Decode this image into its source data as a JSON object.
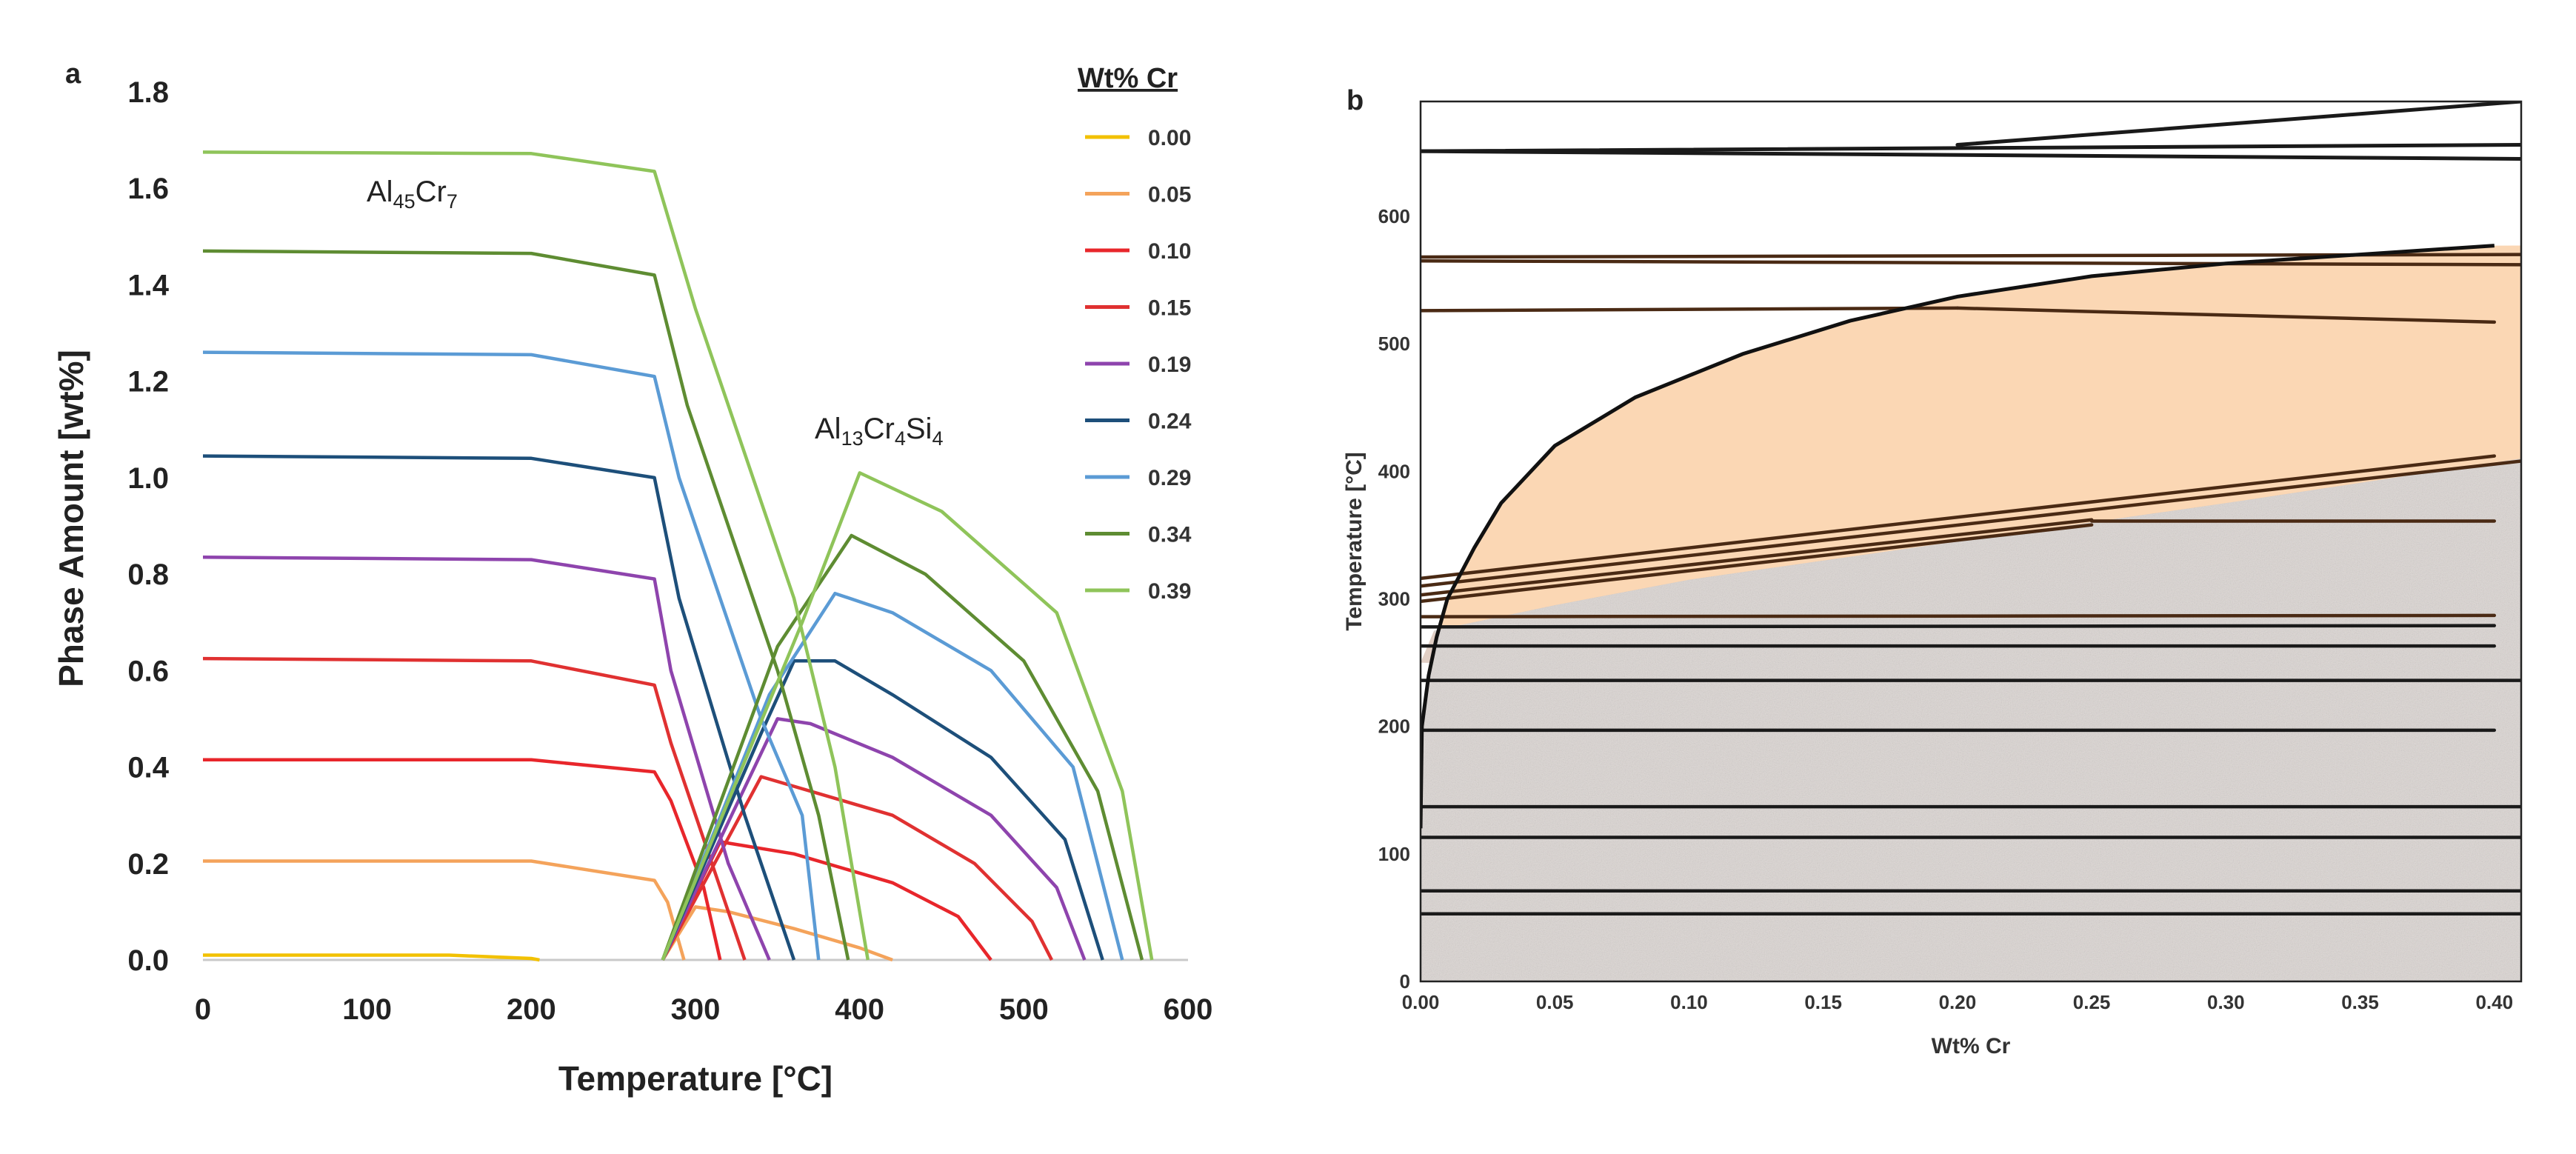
{
  "chart_data": [
    {
      "type": "line",
      "panel_label": "a",
      "xlabel": "Temperature [°C]",
      "ylabel": "Phase Amount [wt%]",
      "xlim": [
        0,
        600
      ],
      "ylim": [
        0,
        1.8
      ],
      "x_ticks": [
        "0",
        "100",
        "200",
        "300",
        "400",
        "500",
        "600"
      ],
      "y_ticks": [
        "0.0",
        "0.2",
        "0.4",
        "0.6",
        "0.8",
        "1.0",
        "1.2",
        "1.4",
        "1.6",
        "1.8"
      ],
      "legend_title": "Wt% Cr",
      "phase_label_1": {
        "base": "Al",
        "sub1": "45",
        "mid": "Cr",
        "sub2": "7"
      },
      "phase_label_2": {
        "base": "Al",
        "sub1": "13",
        "mid": "Cr",
        "sub2": "4",
        "mid2": "Si",
        "sub3": "4"
      },
      "series": [
        {
          "name": "0.00",
          "color": "#f2c100",
          "al45cr7": [
            [
              0,
              0.01
            ],
            [
              150,
              0.01
            ],
            [
              200,
              0.003
            ],
            [
              205,
              0
            ]
          ],
          "al13cr4si4": []
        },
        {
          "name": "0.05",
          "color": "#f4a35b",
          "al45cr7": [
            [
              0,
              0.205
            ],
            [
              200,
              0.205
            ],
            [
              275,
              0.165
            ],
            [
              283,
              0.12
            ],
            [
              293,
              0
            ]
          ],
          "al13cr4si4": [
            [
              280,
              0
            ],
            [
              300,
              0.11
            ],
            [
              320,
              0.1
            ],
            [
              360,
              0.065
            ],
            [
              400,
              0.025
            ],
            [
              420,
              0
            ]
          ]
        },
        {
          "name": "0.10",
          "color": "#e8262b",
          "al45cr7": [
            [
              0,
              0.415
            ],
            [
              200,
              0.415
            ],
            [
              275,
              0.39
            ],
            [
              285,
              0.33
            ],
            [
              305,
              0.15
            ],
            [
              315,
              0
            ]
          ],
          "al13cr4si4": [
            [
              280,
              0
            ],
            [
              315,
              0.245
            ],
            [
              360,
              0.22
            ],
            [
              420,
              0.16
            ],
            [
              460,
              0.09
            ],
            [
              480,
              0
            ]
          ]
        },
        {
          "name": "0.15",
          "color": "#e03131",
          "al45cr7": [
            [
              0,
              0.625
            ],
            [
              200,
              0.62
            ],
            [
              275,
              0.57
            ],
            [
              285,
              0.45
            ],
            [
              315,
              0.15
            ],
            [
              330,
              0
            ]
          ],
          "al13cr4si4": [
            [
              280,
              0
            ],
            [
              340,
              0.38
            ],
            [
              360,
              0.36
            ],
            [
              420,
              0.3
            ],
            [
              470,
              0.2
            ],
            [
              505,
              0.08
            ],
            [
              517,
              0
            ]
          ]
        },
        {
          "name": "0.19",
          "color": "#8e44ad",
          "al45cr7": [
            [
              0,
              0.835
            ],
            [
              200,
              0.83
            ],
            [
              275,
              0.79
            ],
            [
              285,
              0.6
            ],
            [
              320,
              0.2
            ],
            [
              345,
              0
            ]
          ],
          "al13cr4si4": [
            [
              280,
              0
            ],
            [
              350,
              0.5
            ],
            [
              370,
              0.49
            ],
            [
              420,
              0.42
            ],
            [
              480,
              0.3
            ],
            [
              520,
              0.15
            ],
            [
              537,
              0
            ]
          ]
        },
        {
          "name": "0.24",
          "color": "#1d4f7a",
          "al45cr7": [
            [
              0,
              1.045
            ],
            [
              200,
              1.04
            ],
            [
              275,
              1.0
            ],
            [
              290,
              0.75
            ],
            [
              330,
              0.3
            ],
            [
              350,
              0.1
            ],
            [
              360,
              0
            ]
          ],
          "al13cr4si4": [
            [
              280,
              0
            ],
            [
              340,
              0.47
            ],
            [
              360,
              0.62
            ],
            [
              385,
              0.62
            ],
            [
              420,
              0.55
            ],
            [
              480,
              0.42
            ],
            [
              525,
              0.25
            ],
            [
              548,
              0
            ]
          ]
        },
        {
          "name": "0.29",
          "color": "#5b9bd5",
          "al45cr7": [
            [
              0,
              1.26
            ],
            [
              200,
              1.255
            ],
            [
              275,
              1.21
            ],
            [
              290,
              1.0
            ],
            [
              340,
              0.5
            ],
            [
              365,
              0.3
            ],
            [
              375,
              0
            ]
          ],
          "al13cr4si4": [
            [
              280,
              0
            ],
            [
              345,
              0.55
            ],
            [
              385,
              0.76
            ],
            [
              420,
              0.72
            ],
            [
              480,
              0.6
            ],
            [
              530,
              0.4
            ],
            [
              560,
              0
            ]
          ]
        },
        {
          "name": "0.34",
          "color": "#5e8c32",
          "al45cr7": [
            [
              0,
              1.47
            ],
            [
              200,
              1.465
            ],
            [
              275,
              1.42
            ],
            [
              295,
              1.15
            ],
            [
              350,
              0.6
            ],
            [
              375,
              0.3
            ],
            [
              393,
              0
            ]
          ],
          "al13cr4si4": [
            [
              280,
              0
            ],
            [
              350,
              0.65
            ],
            [
              395,
              0.88
            ],
            [
              440,
              0.8
            ],
            [
              500,
              0.62
            ],
            [
              545,
              0.35
            ],
            [
              572,
              0
            ]
          ]
        },
        {
          "name": "0.39",
          "color": "#8fc45a",
          "al45cr7": [
            [
              0,
              1.675
            ],
            [
              200,
              1.672
            ],
            [
              275,
              1.635
            ],
            [
              300,
              1.35
            ],
            [
              360,
              0.75
            ],
            [
              385,
              0.4
            ],
            [
              405,
              0
            ]
          ],
          "al13cr4si4": [
            [
              280,
              0
            ],
            [
              365,
              0.7
            ],
            [
              400,
              1.01
            ],
            [
              450,
              0.93
            ],
            [
              520,
              0.72
            ],
            [
              560,
              0.35
            ],
            [
              578,
              0
            ]
          ]
        }
      ]
    },
    {
      "type": "area",
      "panel_label": "b",
      "xlabel": "Wt% Cr",
      "ylabel": "Temperature [°C]",
      "xlim": [
        0,
        0.41
      ],
      "ylim": [
        0,
        690
      ],
      "x_ticks": [
        "0.00",
        "0.05",
        "0.10",
        "0.15",
        "0.20",
        "0.25",
        "0.30",
        "0.35",
        "0.40"
      ],
      "y_ticks": [
        "0",
        "100",
        "200",
        "300",
        "400",
        "500",
        "600"
      ],
      "solvus_boundary": [
        [
          0,
          120
        ],
        [
          0.0005,
          200
        ],
        [
          0.003,
          240
        ],
        [
          0.006,
          270
        ],
        [
          0.01,
          300
        ],
        [
          0.02,
          340
        ],
        [
          0.03,
          375
        ],
        [
          0.05,
          420
        ],
        [
          0.08,
          458
        ],
        [
          0.12,
          492
        ],
        [
          0.16,
          518
        ],
        [
          0.2,
          537
        ],
        [
          0.25,
          553
        ],
        [
          0.3,
          563
        ],
        [
          0.35,
          570
        ],
        [
          0.4,
          577
        ]
      ],
      "lower_boundary": [
        [
          0.005,
          275
        ],
        [
          0.05,
          295
        ],
        [
          0.1,
          315
        ],
        [
          0.2,
          345
        ],
        [
          0.3,
          375
        ],
        [
          0.41,
          410
        ]
      ],
      "isotherm_lines": [
        {
          "from": [
            0,
            651
          ],
          "to": [
            0.41,
            656
          ]
        },
        {
          "from": [
            0,
            651
          ],
          "to": [
            0.41,
            645
          ]
        },
        {
          "from": [
            0.2,
            656
          ],
          "to": [
            0.41,
            690
          ]
        },
        {
          "from": [
            0,
            568
          ],
          "to": [
            0.41,
            570
          ]
        },
        {
          "from": [
            0,
            565
          ],
          "to": [
            0.41,
            562
          ]
        },
        {
          "from": [
            0,
            526
          ],
          "to": [
            0.2,
            528
          ]
        },
        {
          "from": [
            0.2,
            528
          ],
          "to": [
            0.4,
            517
          ]
        },
        {
          "from": [
            0,
            316
          ],
          "to": [
            0.4,
            412
          ]
        },
        {
          "from": [
            0,
            310
          ],
          "to": [
            0.41,
            408
          ]
        },
        {
          "from": [
            0,
            303
          ],
          "to": [
            0.25,
            362
          ]
        },
        {
          "from": [
            0,
            298
          ],
          "to": [
            0.25,
            358
          ]
        },
        {
          "from": [
            0.25,
            361
          ],
          "to": [
            0.4,
            361
          ]
        },
        {
          "from": [
            0,
            286
          ],
          "to": [
            0.4,
            287
          ]
        },
        {
          "from": [
            0,
            278
          ],
          "to": [
            0.4,
            279
          ]
        },
        {
          "from": [
            0,
            263
          ],
          "to": [
            0.4,
            263
          ]
        },
        {
          "from": [
            0,
            236
          ],
          "to": [
            0.41,
            236
          ]
        },
        {
          "from": [
            0,
            197
          ],
          "to": [
            0.4,
            197
          ]
        },
        {
          "from": [
            0,
            137
          ],
          "to": [
            0.41,
            137
          ]
        },
        {
          "from": [
            0,
            113
          ],
          "to": [
            0.41,
            113
          ]
        },
        {
          "from": [
            0,
            71
          ],
          "to": [
            0.41,
            71
          ]
        },
        {
          "from": [
            0,
            53
          ],
          "to": [
            0.41,
            53
          ]
        }
      ],
      "colors": {
        "orange_region": "#fbd7b4",
        "brown_region": "#c8a896",
        "grey_region": "#dcd6d3",
        "line": "#1a1a1a",
        "brown_line": "#4a2a14"
      }
    }
  ]
}
